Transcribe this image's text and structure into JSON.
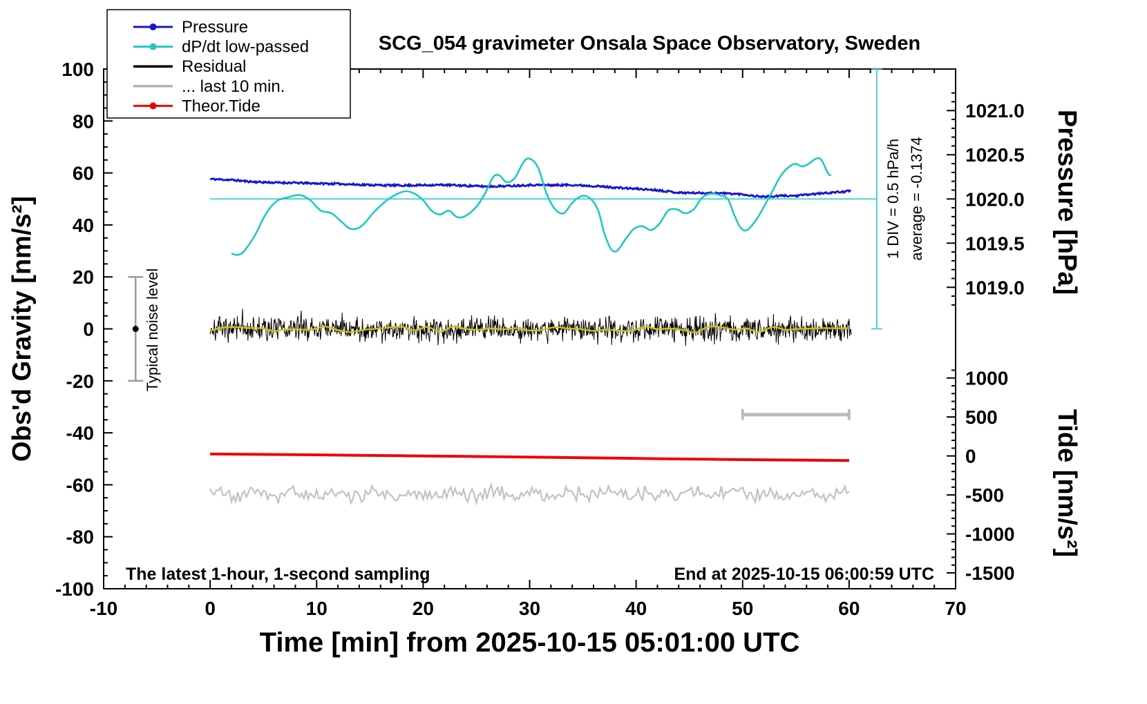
{
  "title": "SCG_054 gravimeter Onsala Space Observatory, Sweden",
  "texts": {
    "sampling_note": "The latest 1-hour, 1-second sampling",
    "end_time_note": "End at 2025-10-15 06:00:59 UTC",
    "noise_level_label": "Typical noise level",
    "div_scale_label": "1 DIV = 0.5 hPa/h",
    "average_label": "average = -0.1374"
  },
  "legend": [
    {
      "label": "Pressure",
      "color": "#1414d2",
      "marker": "dot-line"
    },
    {
      "label": "dP/dt low-passed",
      "color": "#21c8c2",
      "marker": "dot-line"
    },
    {
      "label": "Residual",
      "color": "#000000",
      "marker": "line"
    },
    {
      "label": "... last 10 min.",
      "color": "#b2b2b2",
      "marker": "line"
    },
    {
      "label": "Theor.Tide",
      "color": "#ee0000",
      "marker": "dot-line"
    }
  ],
  "chart_data": {
    "type": "line",
    "title": "SCG_054 gravimeter Onsala Space Observatory, Sweden",
    "x_axis": {
      "label": "Time [min] from 2025-10-15 05:01:00 UTC",
      "min": -10,
      "max": 70,
      "major_tick_step": 10,
      "minor_tick_step": 2
    },
    "y_axis": {
      "label": "Obs'd Gravity [nm/s²]",
      "min": -100,
      "max": 100,
      "major_tick_step": 20,
      "minor_tick_step": 5
    },
    "pressure_axis": {
      "label": "Pressure [hPa]",
      "tick_labels": [
        1021.0,
        1020.5,
        1020.0,
        1019.5,
        1019.0
      ],
      "ref_hpa": 1020.0,
      "ref_gravity": 50,
      "gravity_per_hpa": 34.0,
      "minor_tick_step_hpa": 0.1
    },
    "tide_axis": {
      "label": "Tide [nm/s²]",
      "tick_labels": [
        1000,
        500,
        0,
        -500,
        -1000,
        -1500
      ],
      "ref_tide": 0,
      "ref_gravity": -48.9,
      "gravity_per_tide_unit": 0.03,
      "minor_tick_step": 100
    },
    "series": {
      "pressure": {
        "name": "Pressure",
        "color": "#1414d2",
        "units": "hPa",
        "width": 2.8,
        "jitter_amplitude_gravity": 0.35,
        "seed": 11,
        "points": [
          [
            0,
            1020.226
          ],
          [
            2,
            1020.215
          ],
          [
            4,
            1020.194
          ],
          [
            6,
            1020.185
          ],
          [
            8,
            1020.182
          ],
          [
            10,
            1020.176
          ],
          [
            12,
            1020.171
          ],
          [
            14,
            1020.162
          ],
          [
            16,
            1020.156
          ],
          [
            18,
            1020.153
          ],
          [
            20,
            1020.156
          ],
          [
            22,
            1020.159
          ],
          [
            24,
            1020.15
          ],
          [
            26,
            1020.141
          ],
          [
            28,
            1020.147
          ],
          [
            30,
            1020.159
          ],
          [
            32,
            1020.156
          ],
          [
            34,
            1020.159
          ],
          [
            36,
            1020.147
          ],
          [
            38,
            1020.129
          ],
          [
            40,
            1020.115
          ],
          [
            42,
            1020.1
          ],
          [
            44,
            1020.071
          ],
          [
            46,
            1020.068
          ],
          [
            48,
            1020.065
          ],
          [
            50,
            1020.053
          ],
          [
            51,
            1020.035
          ],
          [
            52,
            1020.026
          ],
          [
            53,
            1020.029
          ],
          [
            54,
            1020.038
          ],
          [
            55,
            1020.035
          ],
          [
            56,
            1020.047
          ],
          [
            57,
            1020.059
          ],
          [
            58,
            1020.068
          ],
          [
            59,
            1020.079
          ],
          [
            60,
            1020.088
          ]
        ]
      },
      "dpdt_lowpassed": {
        "name": "dP/dt low-passed",
        "color": "#21c8c2",
        "width": 2.6,
        "units": "left-axis nm/s²; 20 units = 1 DIV = 0.5 hPa/h, centered on average at 50",
        "points_gravity": [
          [
            2.0,
            29
          ],
          [
            2.6,
            28.5
          ],
          [
            3.2,
            30
          ],
          [
            4.2,
            36
          ],
          [
            5.2,
            44
          ],
          [
            6.2,
            49
          ],
          [
            7.2,
            50.5
          ],
          [
            8.4,
            51.5
          ],
          [
            9.4,
            49.5
          ],
          [
            10.4,
            45.5
          ],
          [
            11.4,
            44.5
          ],
          [
            12.4,
            41
          ],
          [
            13.2,
            38.5
          ],
          [
            14.2,
            39.5
          ],
          [
            15.4,
            45
          ],
          [
            16.6,
            49.5
          ],
          [
            17.6,
            52
          ],
          [
            18.4,
            53
          ],
          [
            19.2,
            52
          ],
          [
            20.0,
            49.5
          ],
          [
            20.8,
            45.5
          ],
          [
            21.6,
            44
          ],
          [
            22.4,
            45.5
          ],
          [
            23.2,
            43
          ],
          [
            24.0,
            43.5
          ],
          [
            25.0,
            47
          ],
          [
            25.8,
            52
          ],
          [
            26.6,
            58.5
          ],
          [
            27.2,
            59
          ],
          [
            27.8,
            56.5
          ],
          [
            28.6,
            58
          ],
          [
            29.4,
            64
          ],
          [
            30.0,
            65.5
          ],
          [
            30.8,
            62
          ],
          [
            31.6,
            52
          ],
          [
            32.4,
            46
          ],
          [
            33.2,
            44.5
          ],
          [
            34.0,
            48.5
          ],
          [
            34.8,
            51
          ],
          [
            35.6,
            50.5
          ],
          [
            36.4,
            46
          ],
          [
            37.0,
            37
          ],
          [
            37.6,
            31
          ],
          [
            38.2,
            30
          ],
          [
            39.0,
            34.5
          ],
          [
            39.8,
            38.5
          ],
          [
            40.6,
            39.5
          ],
          [
            41.4,
            38
          ],
          [
            42.2,
            40.5
          ],
          [
            43.0,
            45.5
          ],
          [
            43.8,
            46
          ],
          [
            44.6,
            44.5
          ],
          [
            45.4,
            46
          ],
          [
            46.2,
            50.5
          ],
          [
            47.0,
            52
          ],
          [
            47.8,
            51.5
          ],
          [
            48.6,
            50
          ],
          [
            49.2,
            44
          ],
          [
            49.8,
            39
          ],
          [
            50.4,
            38
          ],
          [
            51.2,
            41.5
          ],
          [
            52.0,
            47
          ],
          [
            52.8,
            53
          ],
          [
            53.6,
            59
          ],
          [
            54.4,
            62.5
          ],
          [
            55.0,
            63.5
          ],
          [
            55.6,
            62.5
          ],
          [
            56.2,
            63.5
          ],
          [
            56.9,
            65.5
          ],
          [
            57.4,
            65
          ],
          [
            58.0,
            60
          ],
          [
            58.3,
            59
          ]
        ]
      },
      "residual": {
        "name": "Residual",
        "color": "#000000",
        "width": 1,
        "x_start": 0,
        "x_end": 60.2,
        "mean_gravity": 0,
        "amplitude_gravity": 7,
        "sample_step_min": 0.05,
        "seed": 7,
        "description": "1-second residual noise band, mostly within ±5 nm/s², spikes to ±8"
      },
      "residual_lowpassed": {
        "name": "Residual low-passed",
        "color": "#c8c800",
        "width": 2.4,
        "x_start": 0,
        "x_end": 60.2,
        "mean_gravity": 0,
        "amplitude_gravity": 1.2,
        "seed": 19
      },
      "last10": {
        "name": "... last 10 min.",
        "color": "#c2c2c2",
        "width": 2.2,
        "x_start": 0,
        "x_end": 60.2,
        "mean_gravity": -63.5,
        "amplitude_gravity": 2.4,
        "sample_step_min": 0.2,
        "seed": 5
      },
      "theor_tide": {
        "name": "Theor.Tide",
        "color": "#ee0000",
        "width": 4,
        "units": "tide nm/s²",
        "points": [
          [
            0,
            25
          ],
          [
            6,
            19
          ],
          [
            12,
            11
          ],
          [
            18,
            3
          ],
          [
            24,
            -6
          ],
          [
            30,
            -15
          ],
          [
            36,
            -25
          ],
          [
            42,
            -35
          ],
          [
            48,
            -44
          ],
          [
            54,
            -52
          ],
          [
            60,
            -58
          ]
        ]
      }
    },
    "reference_marks": {
      "noise_bar": {
        "x": -7,
        "g_min": -20,
        "g_max": 20,
        "color": "#9a9a9a"
      },
      "last10_bar": {
        "x_start": 50,
        "x_end": 60,
        "g": -33,
        "color": "#bbbbbb"
      },
      "dpdt_ref_line": {
        "g": 50,
        "x_start": 0,
        "x_end": 62.6,
        "color": "#21c8c2"
      },
      "dpdt_scale_bar": {
        "x": 62.6,
        "g_start": 0,
        "g_end": 100,
        "color": "#21c8c2"
      }
    }
  }
}
